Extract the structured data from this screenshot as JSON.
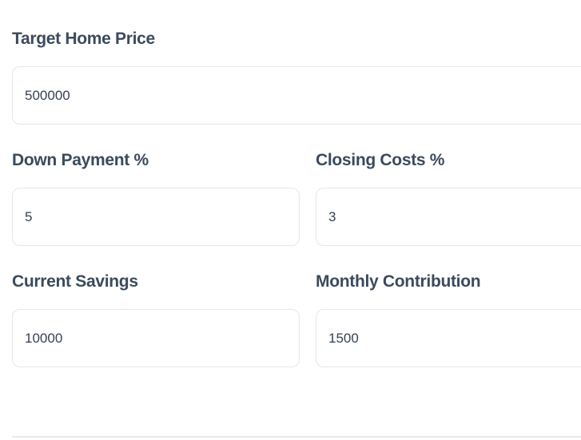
{
  "form": {
    "fields": [
      {
        "label": "Target Home Price",
        "value": "500000"
      },
      {
        "label": "Down Payment %",
        "value": "5"
      },
      {
        "label": "Closing Costs %",
        "value": "3"
      },
      {
        "label": "Current Savings",
        "value": "10000"
      },
      {
        "label": "Monthly Contribution",
        "value": "1500"
      }
    ]
  },
  "colors": {
    "label_text": "#3b4a5c",
    "input_text": "#374151",
    "input_border": "#e5e7eb",
    "divider": "#e8eaee",
    "background": "#ffffff"
  }
}
